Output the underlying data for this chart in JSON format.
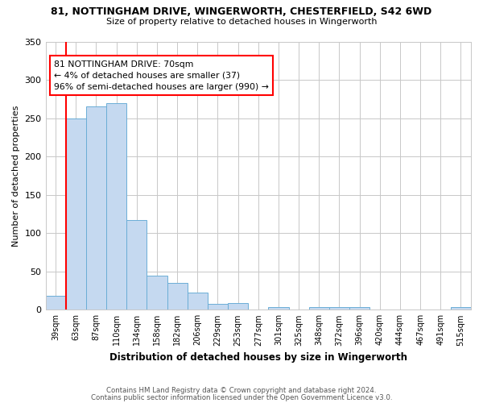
{
  "title1": "81, NOTTINGHAM DRIVE, WINGERWORTH, CHESTERFIELD, S42 6WD",
  "title2": "Size of property relative to detached houses in Wingerworth",
  "xlabel": "Distribution of detached houses by size in Wingerworth",
  "ylabel": "Number of detached properties",
  "categories": [
    "39sqm",
    "63sqm",
    "87sqm",
    "110sqm",
    "134sqm",
    "158sqm",
    "182sqm",
    "206sqm",
    "229sqm",
    "253sqm",
    "277sqm",
    "301sqm",
    "325sqm",
    "348sqm",
    "372sqm",
    "396sqm",
    "420sqm",
    "444sqm",
    "467sqm",
    "491sqm",
    "515sqm"
  ],
  "values": [
    18,
    250,
    265,
    270,
    117,
    45,
    35,
    22,
    8,
    9,
    0,
    3,
    0,
    3,
    3,
    3,
    0,
    0,
    0,
    0,
    3
  ],
  "bar_color": "#c5d9f0",
  "bar_edge_color": "#6baed6",
  "red_line_index": 1,
  "annotation_text": "81 NOTTINGHAM DRIVE: 70sqm\n← 4% of detached houses are smaller (37)\n96% of semi-detached houses are larger (990) →",
  "annotation_box_color": "white",
  "annotation_box_edge": "red",
  "ylim": [
    0,
    350
  ],
  "yticks": [
    0,
    50,
    100,
    150,
    200,
    250,
    300,
    350
  ],
  "footnote1": "Contains HM Land Registry data © Crown copyright and database right 2024.",
  "footnote2": "Contains public sector information licensed under the Open Government Licence v3.0.",
  "bg_color": "white",
  "grid_color": "#c8c8c8"
}
